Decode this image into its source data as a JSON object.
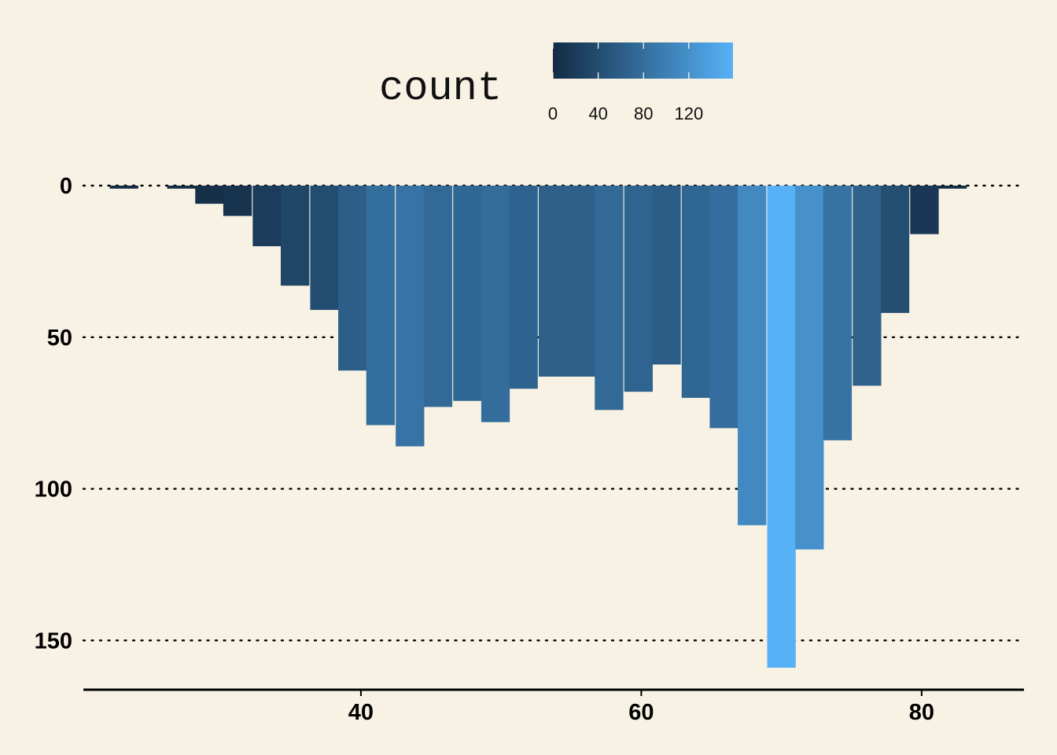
{
  "chart_data": {
    "type": "bar",
    "title": "",
    "xlabel": "",
    "ylabel": "",
    "y_reversed": true,
    "xlim": [
      20.2,
      87.3
    ],
    "ylim": [
      0,
      166
    ],
    "grid": "horizontal dotted",
    "legend": {
      "title": "count",
      "placement": "top",
      "colorbar_range": [
        0,
        159
      ],
      "tick_values": [
        0,
        40,
        80,
        120
      ],
      "tick_labels": [
        "0",
        "40",
        "80",
        "120"
      ],
      "low_color": "#132b43",
      "high_color": "#56b1f7"
    },
    "x_ticks": [
      40,
      60,
      80
    ],
    "x_tick_labels": [
      "40",
      "60",
      "80"
    ],
    "y_ticks": [
      0,
      50,
      100,
      150
    ],
    "y_tick_labels": [
      "0",
      "50",
      "100",
      "150"
    ],
    "bin_width": 2.037,
    "bin_centers": [
      23.1,
      25.1,
      27.2,
      29.2,
      31.2,
      33.3,
      35.3,
      37.4,
      39.4,
      41.4,
      43.5,
      45.5,
      47.6,
      49.6,
      51.6,
      53.7,
      55.7,
      57.7,
      59.8,
      61.8,
      63.9,
      65.9,
      67.9,
      70.0,
      72.0,
      74.0,
      76.1,
      78.1,
      80.2,
      82.2,
      84.2
    ],
    "values": [
      1,
      0,
      1,
      6,
      10,
      20,
      33,
      41,
      61,
      79,
      86,
      73,
      71,
      78,
      67,
      63,
      63,
      74,
      68,
      59,
      70,
      80,
      112,
      159,
      120,
      84,
      66,
      42,
      16,
      1,
      0
    ]
  }
}
